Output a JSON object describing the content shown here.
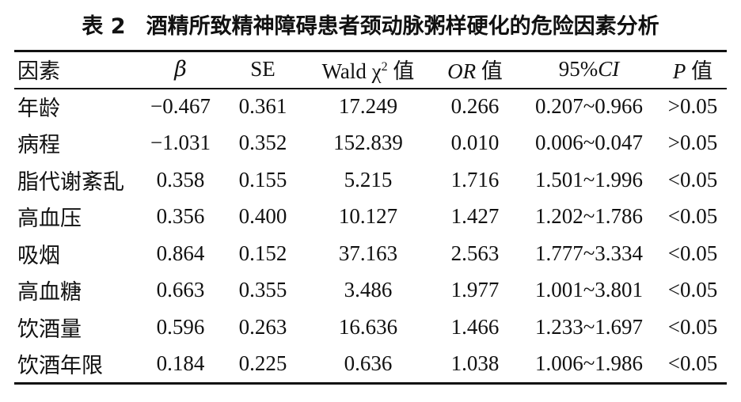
{
  "table_caption": {
    "label": "表 2",
    "title": "酒精所致精神障碍患者颈动脉粥样硬化的危险因素分析"
  },
  "columns": {
    "factor": "因素",
    "beta": "β",
    "se": "SE",
    "wald_prefix": "Wald χ",
    "wald_sup": "2",
    "wald_suffix": "值",
    "or_prefix": "OR",
    "or_suffix": "值",
    "ci_prefix": "95%",
    "ci_italic": "CI",
    "p_prefix": "P",
    "p_suffix": "值"
  },
  "rows": [
    {
      "factor": "年龄",
      "beta": "−0.467",
      "se": "0.361",
      "wald": "17.249",
      "or": "0.266",
      "ci": "0.207~0.966",
      "p": ">0.05"
    },
    {
      "factor": "病程",
      "beta": "−1.031",
      "se": "0.352",
      "wald": "152.839",
      "or": "0.010",
      "ci": "0.006~0.047",
      "p": ">0.05"
    },
    {
      "factor": "脂代谢紊乱",
      "beta": "0.358",
      "se": "0.155",
      "wald": "5.215",
      "or": "1.716",
      "ci": "1.501~1.996",
      "p": "<0.05"
    },
    {
      "factor": "高血压",
      "beta": "0.356",
      "se": "0.400",
      "wald": "10.127",
      "or": "1.427",
      "ci": "1.202~1.786",
      "p": "<0.05"
    },
    {
      "factor": "吸烟",
      "beta": "0.864",
      "se": "0.152",
      "wald": "37.163",
      "or": "2.563",
      "ci": "1.777~3.334",
      "p": "<0.05"
    },
    {
      "factor": "高血糖",
      "beta": "0.663",
      "se": "0.355",
      "wald": "3.486",
      "or": "1.977",
      "ci": "1.001~3.801",
      "p": "<0.05"
    },
    {
      "factor": "饮酒量",
      "beta": "0.596",
      "se": "0.263",
      "wald": "16.636",
      "or": "1.466",
      "ci": "1.233~1.697",
      "p": "<0.05"
    },
    {
      "factor": "饮酒年限",
      "beta": "0.184",
      "se": "0.225",
      "wald": "0.636",
      "or": "1.038",
      "ci": "1.006~1.986",
      "p": "<0.05"
    }
  ]
}
